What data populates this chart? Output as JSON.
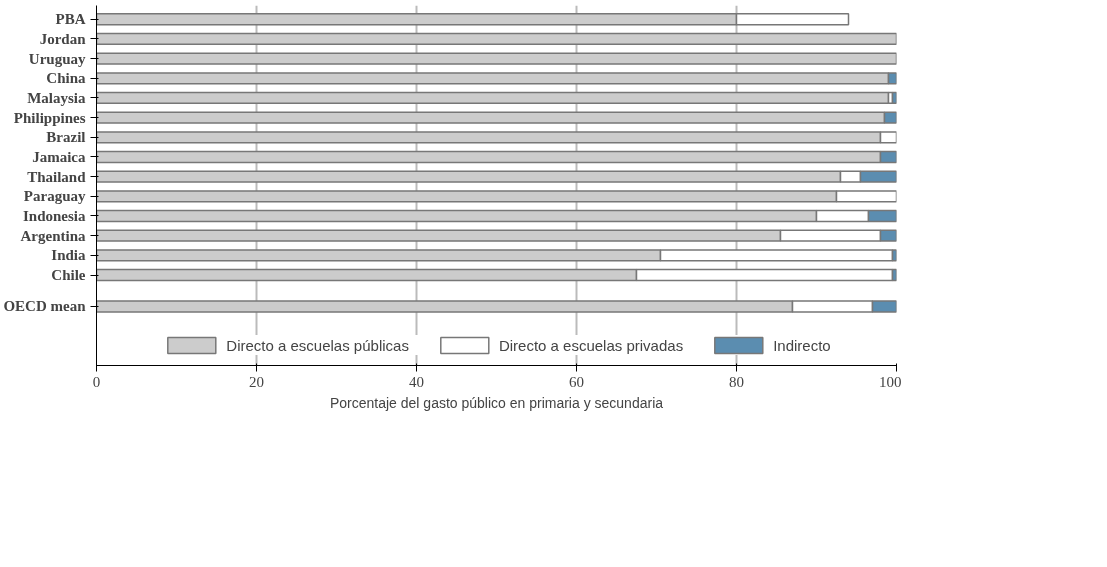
{
  "chart_data": {
    "type": "bar",
    "orientation": "horizontal",
    "stacked": true,
    "categories": [
      "PBA",
      "Jordan",
      "Uruguay",
      "China",
      "Malaysia",
      "Philippines",
      "Brazil",
      "Jamaica",
      "Thailand",
      "Paraguay",
      "Indonesia",
      "Argentina",
      "India",
      "Chile",
      "OECD mean"
    ],
    "series": [
      {
        "name": "Directo a escuelas públicas",
        "color": "#cccccc",
        "values": [
          80,
          100,
          100,
          99,
          99,
          98.5,
          98,
          98,
          93,
          92.5,
          90,
          85.5,
          70.5,
          67.5,
          87
        ]
      },
      {
        "name": "Directo a escuelas privadas",
        "color": "#ffffff",
        "values": [
          14,
          0,
          0,
          0,
          0.5,
          0,
          2,
          0,
          2.5,
          7.5,
          6.5,
          12.5,
          29,
          32,
          10
        ]
      },
      {
        "name": "Indirecto",
        "color": "#5b8db0",
        "values": [
          0,
          0,
          0,
          1,
          0.5,
          1.5,
          0,
          2,
          4.5,
          0,
          3.5,
          2,
          0.5,
          0.5,
          3
        ]
      }
    ],
    "xlabel": "Porcentaje del gasto público en primaria y secundaria",
    "xlim": [
      0,
      100
    ],
    "xticks": [
      0,
      20,
      40,
      60,
      80,
      100
    ],
    "grid": "x",
    "legend": "bottom"
  }
}
